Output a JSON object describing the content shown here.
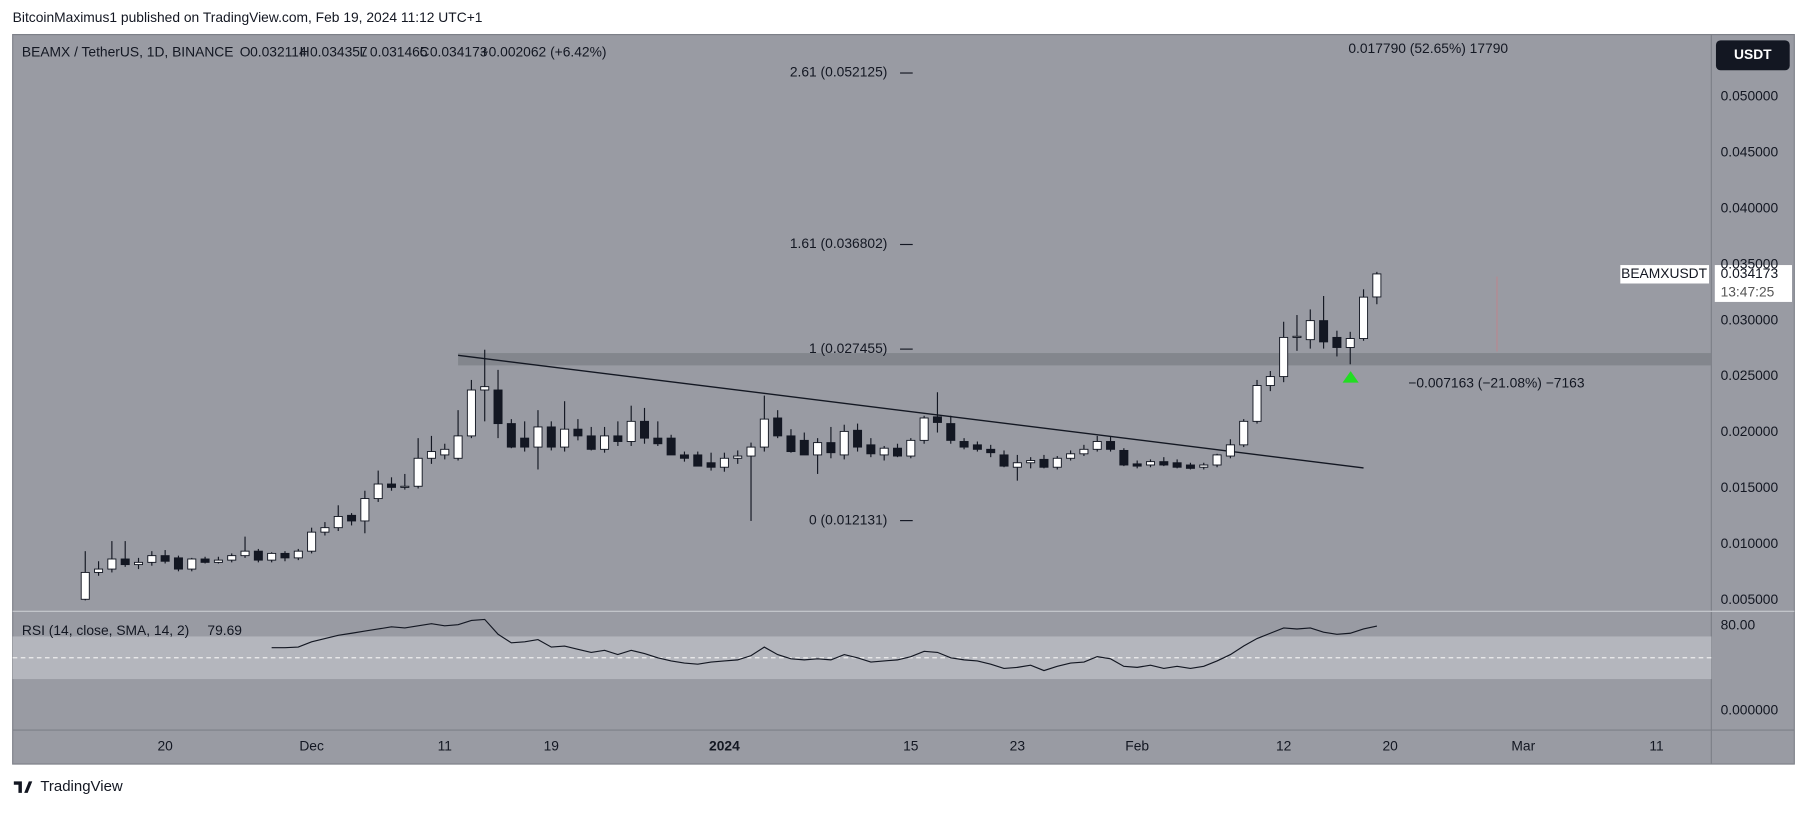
{
  "header": {
    "publisher": "BitcoinMaximus1 published on TradingView.com, Feb 19, 2024 11:12 UTC+1",
    "symbol": "BEAMX / TetherUS, 1D, BINANCE",
    "o": "O",
    "h": "H",
    "l": "L",
    "c": "C",
    "change": "+0.002062 (+6.42%)",
    "currency": "USDT",
    "ticker": "BEAMXUSDT",
    "countdown": "13:47:25",
    "brand": "TradingView"
  },
  "chart_data": [
    {
      "type": "candlestick",
      "ohlc": [
        [
          0.0051,
          0.0094,
          0.005,
          0.0075
        ],
        [
          0.0075,
          0.0085,
          0.0072,
          0.0078
        ],
        [
          0.0078,
          0.0103,
          0.0075,
          0.0087
        ],
        [
          0.0087,
          0.0103,
          0.008,
          0.0082
        ],
        [
          0.0082,
          0.0088,
          0.0078,
          0.0084
        ],
        [
          0.0084,
          0.0094,
          0.0081,
          0.009
        ],
        [
          0.009,
          0.0095,
          0.0083,
          0.0085
        ],
        [
          0.0088,
          0.009,
          0.0076,
          0.0078
        ],
        [
          0.0078,
          0.0088,
          0.0076,
          0.0087
        ],
        [
          0.0087,
          0.0089,
          0.0083,
          0.0084
        ],
        [
          0.0084,
          0.0089,
          0.0083,
          0.0086
        ],
        [
          0.0086,
          0.0092,
          0.0084,
          0.009
        ],
        [
          0.009,
          0.0107,
          0.0088,
          0.0094
        ],
        [
          0.0094,
          0.0096,
          0.0084,
          0.0086
        ],
        [
          0.0086,
          0.0093,
          0.0084,
          0.0092
        ],
        [
          0.0092,
          0.0094,
          0.0085,
          0.0088
        ],
        [
          0.0088,
          0.0096,
          0.0086,
          0.0094
        ],
        [
          0.0094,
          0.0115,
          0.0092,
          0.0111
        ],
        [
          0.0111,
          0.012,
          0.0108,
          0.0115
        ],
        [
          0.0115,
          0.0135,
          0.0112,
          0.0125
        ],
        [
          0.0126,
          0.0128,
          0.0117,
          0.0121
        ],
        [
          0.0121,
          0.0148,
          0.011,
          0.0141
        ],
        [
          0.0141,
          0.0166,
          0.0138,
          0.0154
        ],
        [
          0.0154,
          0.016,
          0.0148,
          0.0151
        ],
        [
          0.0151,
          0.0163,
          0.0149,
          0.0152
        ],
        [
          0.0152,
          0.0195,
          0.015,
          0.0177
        ],
        [
          0.0177,
          0.0197,
          0.0172,
          0.0183
        ],
        [
          0.018,
          0.019,
          0.0176,
          0.0185
        ],
        [
          0.0177,
          0.022,
          0.0175,
          0.0197
        ],
        [
          0.0197,
          0.0247,
          0.0195,
          0.0238
        ],
        [
          0.0238,
          0.0274,
          0.021,
          0.0241
        ],
        [
          0.0238,
          0.0256,
          0.0195,
          0.0208
        ],
        [
          0.0208,
          0.0212,
          0.0186,
          0.0187
        ],
        [
          0.0195,
          0.021,
          0.0183,
          0.0187
        ],
        [
          0.0187,
          0.022,
          0.0167,
          0.0205
        ],
        [
          0.0205,
          0.021,
          0.0184,
          0.0187
        ],
        [
          0.0187,
          0.0228,
          0.0183,
          0.0203
        ],
        [
          0.0203,
          0.0212,
          0.0193,
          0.0197
        ],
        [
          0.0197,
          0.0205,
          0.0184,
          0.0185
        ],
        [
          0.0185,
          0.0205,
          0.0182,
          0.0197
        ],
        [
          0.0197,
          0.021,
          0.0188,
          0.0192
        ],
        [
          0.0192,
          0.0224,
          0.0188,
          0.021
        ],
        [
          0.021,
          0.0222,
          0.019,
          0.0195
        ],
        [
          0.0195,
          0.021,
          0.0188,
          0.019
        ],
        [
          0.0195,
          0.0198,
          0.018,
          0.018
        ],
        [
          0.018,
          0.0183,
          0.0174,
          0.0177
        ],
        [
          0.018,
          0.0183,
          0.017,
          0.017
        ],
        [
          0.0173,
          0.0182,
          0.0166,
          0.0169
        ],
        [
          0.0169,
          0.0182,
          0.0165,
          0.0177
        ],
        [
          0.0177,
          0.0184,
          0.0172,
          0.0179
        ],
        [
          0.0179,
          0.0191,
          0.0121,
          0.0187
        ],
        [
          0.0187,
          0.0233,
          0.0183,
          0.0212
        ],
        [
          0.0213,
          0.022,
          0.0195,
          0.0197
        ],
        [
          0.0197,
          0.0203,
          0.0182,
          0.0183
        ],
        [
          0.0193,
          0.02,
          0.018,
          0.018
        ],
        [
          0.018,
          0.0195,
          0.0163,
          0.0191
        ],
        [
          0.0191,
          0.0205,
          0.0177,
          0.0182
        ],
        [
          0.018,
          0.0207,
          0.0176,
          0.0201
        ],
        [
          0.0202,
          0.0208,
          0.0183,
          0.0187
        ],
        [
          0.0189,
          0.0195,
          0.0178,
          0.0181
        ],
        [
          0.018,
          0.0188,
          0.0175,
          0.0186
        ],
        [
          0.0186,
          0.019,
          0.0178,
          0.0179
        ],
        [
          0.0179,
          0.0195,
          0.0177,
          0.0193
        ],
        [
          0.0193,
          0.0215,
          0.019,
          0.0213
        ],
        [
          0.0214,
          0.0236,
          0.02,
          0.0209
        ],
        [
          0.0208,
          0.0215,
          0.019,
          0.0193
        ],
        [
          0.0192,
          0.0195,
          0.0185,
          0.0187
        ],
        [
          0.0189,
          0.0192,
          0.0183,
          0.0185
        ],
        [
          0.0185,
          0.0189,
          0.0178,
          0.0182
        ],
        [
          0.018,
          0.0184,
          0.0169,
          0.017
        ],
        [
          0.0169,
          0.018,
          0.0157,
          0.0173
        ],
        [
          0.0173,
          0.0178,
          0.0168,
          0.0175
        ],
        [
          0.0176,
          0.018,
          0.0168,
          0.0169
        ],
        [
          0.0169,
          0.0179,
          0.0167,
          0.0177
        ],
        [
          0.0177,
          0.0184,
          0.0175,
          0.0181
        ],
        [
          0.0181,
          0.0189,
          0.0179,
          0.0185
        ],
        [
          0.0185,
          0.0197,
          0.0183,
          0.0192
        ],
        [
          0.0192,
          0.0196,
          0.0183,
          0.0185
        ],
        [
          0.0184,
          0.0186,
          0.017,
          0.0171
        ],
        [
          0.0172,
          0.0175,
          0.0168,
          0.017
        ],
        [
          0.0171,
          0.0176,
          0.0169,
          0.0174
        ],
        [
          0.0174,
          0.0178,
          0.017,
          0.0171
        ],
        [
          0.0173,
          0.0176,
          0.0168,
          0.0169
        ],
        [
          0.0171,
          0.0173,
          0.0167,
          0.0168
        ],
        [
          0.0169,
          0.0173,
          0.0167,
          0.0171
        ],
        [
          0.0171,
          0.0181,
          0.0169,
          0.018
        ],
        [
          0.0179,
          0.0194,
          0.0177,
          0.0189
        ],
        [
          0.0189,
          0.0212,
          0.0187,
          0.021
        ],
        [
          0.021,
          0.0247,
          0.0208,
          0.0242
        ],
        [
          0.0242,
          0.0255,
          0.0237,
          0.025
        ],
        [
          0.025,
          0.0299,
          0.0245,
          0.0285
        ],
        [
          0.0285,
          0.0305,
          0.0273,
          0.0286
        ],
        [
          0.0283,
          0.031,
          0.0275,
          0.03
        ],
        [
          0.03,
          0.0322,
          0.0275,
          0.0281
        ],
        [
          0.0285,
          0.0291,
          0.0268,
          0.0276
        ],
        [
          0.0276,
          0.029,
          0.0261,
          0.0284
        ],
        [
          0.0284,
          0.0328,
          0.0282,
          0.0321
        ],
        [
          0.032114,
          0.034357,
          0.031465,
          0.034173
        ]
      ],
      "up_color": "#ffffff",
      "down_color": "#131722",
      "xlim": [
        -5.45,
        122.12
      ],
      "xticks": [
        {
          "value": 6,
          "label": "20"
        },
        {
          "value": 17,
          "label": "Dec"
        },
        {
          "value": 27,
          "label": "11"
        },
        {
          "value": 35,
          "label": "19"
        },
        {
          "value": 48,
          "label": "2024"
        },
        {
          "value": 62,
          "label": "15"
        },
        {
          "value": 70,
          "label": "23"
        },
        {
          "value": 79,
          "label": "Feb"
        },
        {
          "value": 90,
          "label": "12"
        },
        {
          "value": 98,
          "label": "20"
        },
        {
          "value": 108,
          "label": "Mar"
        },
        {
          "value": 118,
          "label": "11"
        }
      ],
      "ylim": [
        0.004073,
        0.05556
      ],
      "yticks": [
        {
          "value": 0.005,
          "label": "0.005000"
        },
        {
          "value": 0.01,
          "label": "0.010000"
        },
        {
          "value": 0.015,
          "label": "0.015000"
        },
        {
          "value": 0.02,
          "label": "0.020000"
        },
        {
          "value": 0.025,
          "label": "0.025000"
        },
        {
          "value": 0.03,
          "label": "0.030000"
        },
        {
          "value": 0.035,
          "label": "0.035000"
        },
        {
          "value": 0.04,
          "label": "0.040000"
        },
        {
          "value": 0.045,
          "label": "0.045000"
        },
        {
          "value": 0.05,
          "label": "0.050000"
        }
      ],
      "fib_levels": [
        {
          "label": "2.61 (0.052125)",
          "value": 0.052125
        },
        {
          "label": "1.61 (0.036802)",
          "value": 0.036802
        },
        {
          "label": "1 (0.027455)",
          "value": 0.027455
        },
        {
          "label": "0 (0.012131)",
          "value": 0.012131
        }
      ],
      "zone": [
        0.026,
        0.0271
      ],
      "trendline": [
        [
          28,
          0.0269
        ],
        [
          96,
          0.01684
        ]
      ],
      "annotations": [
        "0.017790 (52.65%) 17790",
        "−0.007163 (−21.08%) −7163"
      ]
    },
    {
      "type": "line",
      "name": "RSI (14, close, SMA, 14, 2)",
      "color": "#131722",
      "values": [
        null,
        null,
        null,
        null,
        null,
        null,
        null,
        null,
        null,
        null,
        null,
        null,
        null,
        null,
        59.5,
        59.5,
        60,
        65,
        68,
        71,
        73,
        75,
        77,
        79,
        78,
        80,
        82,
        80,
        81,
        85,
        86,
        72,
        64,
        65,
        67,
        60,
        61,
        58,
        55,
        57,
        53,
        57,
        54,
        50,
        47,
        45,
        44,
        46,
        47,
        48,
        52,
        60,
        53,
        49,
        48,
        49,
        48,
        53,
        50,
        46,
        47,
        48,
        51,
        56,
        55,
        50,
        48,
        47,
        44,
        40,
        41,
        43,
        38,
        42,
        45,
        46,
        51,
        49,
        42,
        41,
        43,
        40,
        42,
        40,
        42,
        47,
        53,
        61,
        68,
        73,
        78,
        77,
        78,
        74,
        72,
        73,
        77,
        79.69
      ],
      "ylim": [
        -17.3,
        93
      ],
      "yticks": [
        {
          "value": 80,
          "label": "80.00"
        },
        {
          "value": 0,
          "label": "0.000000"
        }
      ],
      "band": [
        30,
        70
      ],
      "midline": 50
    }
  ]
}
